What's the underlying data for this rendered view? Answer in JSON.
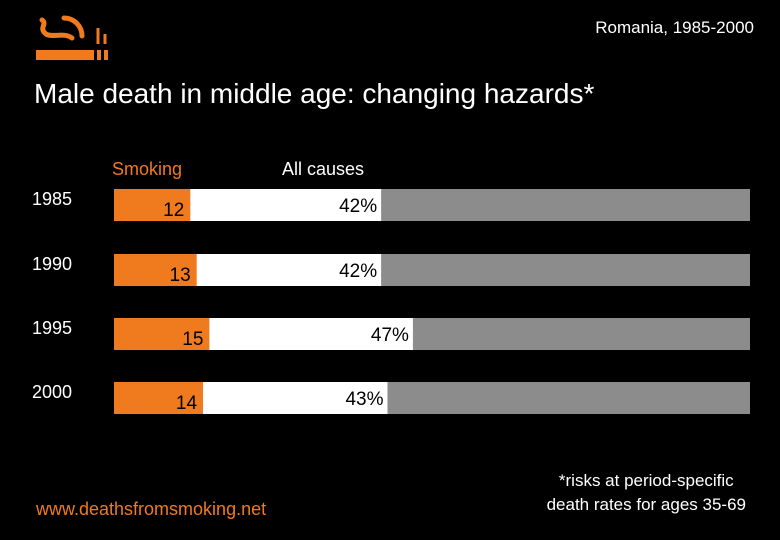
{
  "header": {
    "region": "Romania, 1985-2000",
    "title": "Male death in middle age: changing hazards*"
  },
  "logo": {
    "icon": "cigarette-smoke-icon"
  },
  "colors": {
    "smoking": "#f07a1e",
    "other_causes": "#ffffff",
    "survived": "#8c8c8c",
    "background": "#000000"
  },
  "chart_data": {
    "type": "bar",
    "orientation": "horizontal",
    "stacked": true,
    "categories": [
      "1985",
      "1990",
      "1995",
      "2000"
    ],
    "legend": [
      "Smoking",
      "All causes"
    ],
    "series": [
      {
        "name": "Smoking",
        "values": [
          12,
          13,
          15,
          14
        ]
      },
      {
        "name": "All causes",
        "values": [
          42,
          42,
          47,
          43
        ]
      }
    ],
    "labels": {
      "smoking": [
        "12",
        "13",
        "15",
        "14"
      ],
      "all_causes": [
        "42%",
        "42%",
        "47%",
        "43%"
      ]
    },
    "xlim": [
      0,
      100
    ],
    "xlabel": "",
    "ylabel": ""
  },
  "footer": {
    "website": "www.deathsfromsmoking.net",
    "footnote_line1": "*risks at period-specific",
    "footnote_line2": "death rates for ages 35-69"
  }
}
